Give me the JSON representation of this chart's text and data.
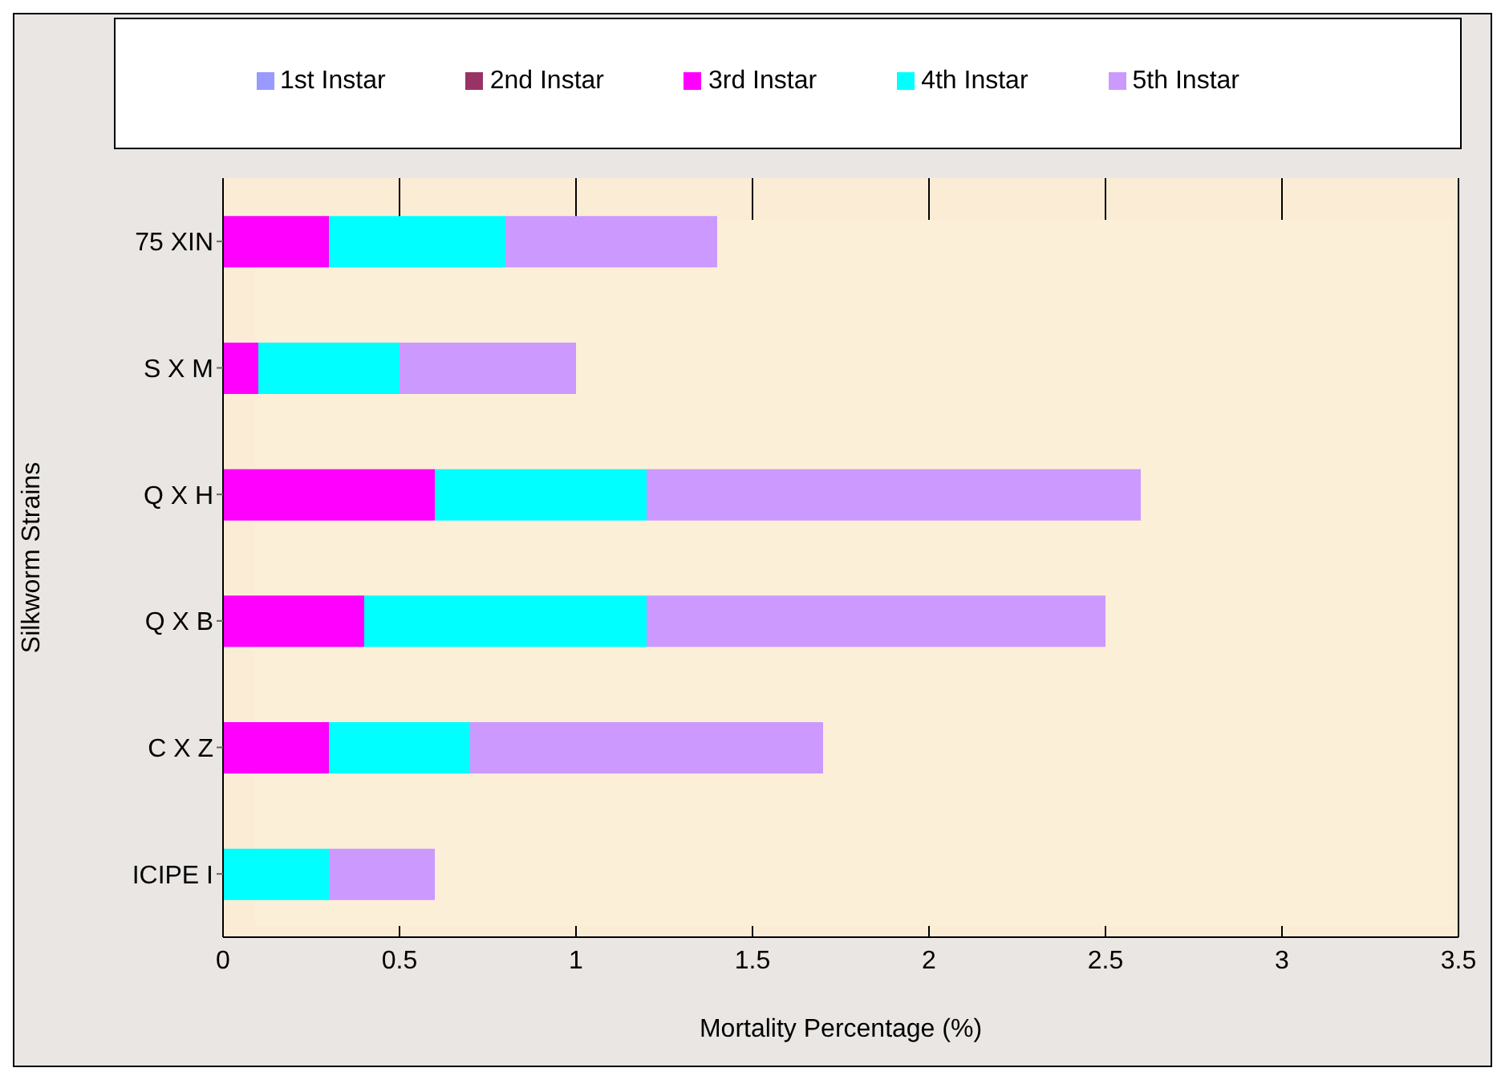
{
  "chart_data": {
    "type": "bar",
    "orientation": "horizontal",
    "stacked": true,
    "xlabel": "Mortality Percentage (%)",
    "ylabel": "Silkworm Strains",
    "categories": [
      "75 XIN",
      "S X M",
      "Q X H",
      "Q X B",
      "C X Z",
      "ICIPE I"
    ],
    "series": [
      {
        "name": "1st Instar",
        "color": "#9999ff",
        "values": [
          0,
          0,
          0,
          0,
          0,
          0
        ]
      },
      {
        "name": "2nd Instar",
        "color": "#993366",
        "values": [
          0,
          0,
          0,
          0,
          0,
          0
        ]
      },
      {
        "name": "3rd Instar",
        "color": "#ff00ff",
        "values": [
          0.3,
          0.1,
          0.6,
          0.4,
          0.3,
          0
        ]
      },
      {
        "name": "4th Instar",
        "color": "#00ffff",
        "values": [
          0.5,
          0.4,
          0.6,
          0.8,
          0.4,
          0.3
        ]
      },
      {
        "name": "5th Instar",
        "color": "#cc99ff",
        "values": [
          0.6,
          0.5,
          1.4,
          1.3,
          1.0,
          0.3
        ]
      }
    ],
    "xlim": [
      0,
      3.5
    ],
    "xticks": [
      0,
      0.5,
      1,
      1.5,
      2,
      2.5,
      3,
      3.5
    ],
    "grid": "x",
    "legend": "top"
  }
}
